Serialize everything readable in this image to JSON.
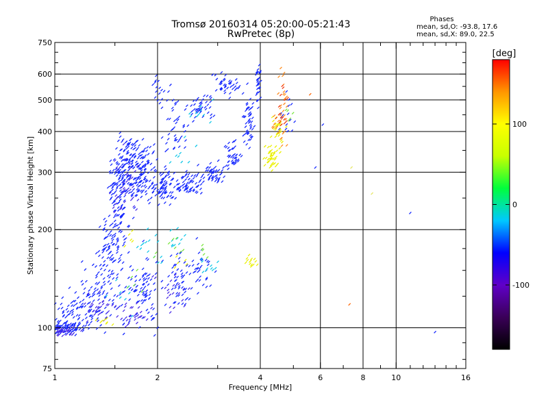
{
  "chart_data": {
    "type": "scatter",
    "title_line1": "Tromsø 20160314 05:20:00-05:21:43",
    "title_line2": "RwPretec (8p)",
    "stats": {
      "heading": "Phases",
      "line_o": "mean, sd,O:  -93.8, 17.6",
      "line_x": "mean, sd,X:  89.0, 22.5"
    },
    "xlabel": "Frequency [MHz]",
    "ylabel": "Stationary phase Virtual Height [km]",
    "x_scale": "log",
    "y_scale": "log",
    "xlim": [
      1,
      16
    ],
    "ylim": [
      75,
      750
    ],
    "x_ticks": [
      1,
      2,
      4,
      6,
      8,
      10,
      16
    ],
    "x_tick_labels": [
      "1",
      "2",
      "4",
      "6",
      "8",
      "10",
      "16"
    ],
    "x_grid": [
      2,
      4,
      6,
      8,
      10
    ],
    "x_minor_ticks": [
      1.5,
      3,
      5,
      7,
      9,
      11,
      12,
      13,
      14,
      15
    ],
    "y_ticks": [
      75,
      100,
      200,
      300,
      400,
      500,
      600,
      750
    ],
    "y_tick_labels": [
      "75",
      "100",
      "200",
      "300",
      "400",
      "500",
      "600",
      "750"
    ],
    "y_grid": [
      100,
      200,
      300,
      400,
      500,
      600
    ],
    "y_minor_ticks": [
      80,
      90,
      125,
      150,
      175,
      250,
      350,
      450,
      550,
      650,
      700
    ],
    "grid": true,
    "colorbar": {
      "label": "[deg]",
      "range": [
        -180,
        180
      ],
      "ticks": [
        100,
        0,
        -100
      ],
      "tick_labels": [
        "100",
        "0",
        "-100"
      ],
      "colors": [
        "#000000",
        "#3a0058",
        "#6000c8",
        "#0000ff",
        "#00c8ff",
        "#00ff3c",
        "#c8ff00",
        "#ffff00",
        "#ff9600",
        "#ff0000"
      ]
    },
    "series": [
      {
        "phase": -100,
        "color": "#1528ff",
        "clusters": [
          {
            "x": 1.05,
            "y": 100,
            "w": 0.07,
            "h": 0.02,
            "n": 90
          },
          {
            "x": 1.2,
            "y": 110,
            "w": 0.1,
            "h": 0.06,
            "n": 90
          },
          {
            "x": 1.35,
            "y": 130,
            "w": 0.08,
            "h": 0.08,
            "n": 60
          },
          {
            "x": 1.45,
            "y": 170,
            "w": 0.05,
            "h": 0.12,
            "n": 90
          },
          {
            "x": 1.55,
            "y": 250,
            "w": 0.04,
            "h": 0.14,
            "n": 110
          },
          {
            "x": 1.65,
            "y": 320,
            "w": 0.05,
            "h": 0.12,
            "n": 120
          },
          {
            "x": 1.8,
            "y": 300,
            "w": 0.05,
            "h": 0.12,
            "n": 100
          },
          {
            "x": 1.8,
            "y": 130,
            "w": 0.07,
            "h": 0.12,
            "n": 90
          },
          {
            "x": 2.1,
            "y": 270,
            "w": 0.05,
            "h": 0.06,
            "n": 90
          },
          {
            "x": 2.5,
            "y": 280,
            "w": 0.05,
            "h": 0.04,
            "n": 60
          },
          {
            "x": 2.9,
            "y": 295,
            "w": 0.04,
            "h": 0.04,
            "n": 50
          },
          {
            "x": 2.3,
            "y": 140,
            "w": 0.06,
            "h": 0.1,
            "n": 60
          },
          {
            "x": 2.7,
            "y": 150,
            "w": 0.05,
            "h": 0.08,
            "n": 30
          },
          {
            "x": 2.7,
            "y": 480,
            "w": 0.04,
            "h": 0.04,
            "n": 40
          },
          {
            "x": 3.3,
            "y": 340,
            "w": 0.03,
            "h": 0.06,
            "n": 40
          },
          {
            "x": 3.7,
            "y": 430,
            "w": 0.02,
            "h": 0.1,
            "n": 50
          },
          {
            "x": 3.2,
            "y": 560,
            "w": 0.05,
            "h": 0.04,
            "n": 40
          },
          {
            "x": 3.95,
            "y": 560,
            "w": 0.01,
            "h": 0.08,
            "n": 30
          },
          {
            "x": 2.3,
            "y": 420,
            "w": 0.05,
            "h": 0.1,
            "n": 40
          },
          {
            "x": 2.0,
            "y": 520,
            "w": 0.04,
            "h": 0.1,
            "n": 20
          },
          {
            "x": 4.8,
            "y": 450,
            "w": 0.03,
            "h": 0.08,
            "n": 15
          }
        ]
      },
      {
        "phase": -80,
        "color": "#4a2ce8",
        "clusters": [
          {
            "x": 1.05,
            "y": 98,
            "w": 0.05,
            "h": 0.02,
            "n": 40
          },
          {
            "x": 1.35,
            "y": 115,
            "w": 0.08,
            "h": 0.05,
            "n": 30
          },
          {
            "x": 1.7,
            "y": 110,
            "w": 0.06,
            "h": 0.04,
            "n": 30
          },
          {
            "x": 1.6,
            "y": 280,
            "w": 0.05,
            "h": 0.12,
            "n": 40
          },
          {
            "x": 2.2,
            "y": 130,
            "w": 0.06,
            "h": 0.08,
            "n": 20
          }
        ]
      },
      {
        "phase": -40,
        "color": "#10c8e8",
        "clusters": [
          {
            "x": 1.9,
            "y": 180,
            "w": 0.05,
            "h": 0.08,
            "n": 14
          },
          {
            "x": 2.3,
            "y": 185,
            "w": 0.05,
            "h": 0.06,
            "n": 10
          },
          {
            "x": 2.8,
            "y": 150,
            "w": 0.05,
            "h": 0.05,
            "n": 10
          },
          {
            "x": 2.7,
            "y": 470,
            "w": 0.04,
            "h": 0.05,
            "n": 10
          },
          {
            "x": 2.4,
            "y": 340,
            "w": 0.05,
            "h": 0.05,
            "n": 8
          },
          {
            "x": 1.5,
            "y": 130,
            "w": 0.05,
            "h": 0.06,
            "n": 8
          }
        ]
      },
      {
        "phase": 30,
        "color": "#78e63c",
        "clusters": [
          {
            "x": 2.2,
            "y": 175,
            "w": 0.05,
            "h": 0.05,
            "n": 8
          },
          {
            "x": 2.7,
            "y": 170,
            "w": 0.04,
            "h": 0.04,
            "n": 5
          },
          {
            "x": 1.7,
            "y": 140,
            "w": 0.04,
            "h": 0.04,
            "n": 5
          },
          {
            "x": 4.9,
            "y": 460,
            "w": 0.02,
            "h": 0.06,
            "n": 5
          }
        ]
      },
      {
        "phase": 90,
        "color": "#eaf000",
        "clusters": [
          {
            "x": 4.3,
            "y": 330,
            "w": 0.025,
            "h": 0.04,
            "n": 40
          },
          {
            "x": 4.5,
            "y": 400,
            "w": 0.02,
            "h": 0.06,
            "n": 30
          },
          {
            "x": 3.75,
            "y": 160,
            "w": 0.015,
            "h": 0.02,
            "n": 14
          },
          {
            "x": 1.4,
            "y": 105,
            "w": 0.04,
            "h": 0.03,
            "n": 8
          },
          {
            "x": 2.3,
            "y": 160,
            "w": 0.03,
            "h": 0.03,
            "n": 5
          },
          {
            "x": 1.7,
            "y": 190,
            "w": 0.03,
            "h": 0.03,
            "n": 5
          }
        ]
      },
      {
        "phase": 130,
        "color": "#ff8c1e",
        "clusters": [
          {
            "x": 4.55,
            "y": 420,
            "w": 0.025,
            "h": 0.08,
            "n": 22
          },
          {
            "x": 4.7,
            "y": 500,
            "w": 0.02,
            "h": 0.05,
            "n": 10
          },
          {
            "x": 4.6,
            "y": 600,
            "w": 0.015,
            "h": 0.03,
            "n": 4
          }
        ]
      },
      {
        "phase": 150,
        "color": "#f03c14",
        "clusters": [
          {
            "x": 4.6,
            "y": 450,
            "w": 0.02,
            "h": 0.06,
            "n": 10
          },
          {
            "x": 4.75,
            "y": 520,
            "w": 0.015,
            "h": 0.04,
            "n": 5
          }
        ]
      }
    ],
    "isolated_points": [
      {
        "x": 11,
        "y": 225,
        "phase": -100,
        "color": "#1528ff"
      },
      {
        "x": 13,
        "y": 97,
        "phase": -100,
        "color": "#1528ff"
      },
      {
        "x": 7.3,
        "y": 118,
        "phase": 150,
        "color": "#ff6400"
      },
      {
        "x": 8.5,
        "y": 258,
        "phase": 100,
        "color": "#e6e664"
      },
      {
        "x": 7.4,
        "y": 310,
        "phase": 100,
        "color": "#e6e664"
      },
      {
        "x": 5.8,
        "y": 310,
        "phase": -100,
        "color": "#1528ff"
      },
      {
        "x": 6.1,
        "y": 420,
        "phase": -100,
        "color": "#1528ff"
      },
      {
        "x": 5.6,
        "y": 520,
        "phase": 150,
        "color": "#ff6400"
      }
    ]
  }
}
